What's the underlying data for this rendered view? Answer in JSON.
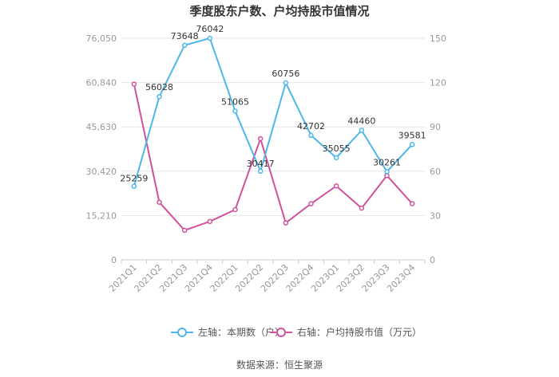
{
  "chart_data": {
    "type": "line",
    "title": "季度股东户数、户均持股市值情况",
    "categories": [
      "2021Q1",
      "2021Q2",
      "2021Q3",
      "2021Q4",
      "2022Q1",
      "2022Q2",
      "2022Q3",
      "2022Q4",
      "2023Q1",
      "2023Q2",
      "2023Q3",
      "2023Q4"
    ],
    "left_axis": {
      "ticks": [
        "0",
        "15,210",
        "30,420",
        "45,630",
        "60,840",
        "76,050"
      ],
      "min": 0,
      "max": 76050
    },
    "right_axis": {
      "ticks": [
        "0",
        "30",
        "60",
        "90",
        "120",
        "150"
      ],
      "min": 0,
      "max": 150
    },
    "series": [
      {
        "name": "左轴：本期数（户）",
        "axis": "left",
        "color": "#4DB8E8",
        "values": [
          25259,
          56028,
          73648,
          76042,
          51065,
          30417,
          60756,
          42702,
          35055,
          44460,
          30261,
          39581
        ],
        "labels": [
          "25259",
          "56028",
          "73648",
          "76042",
          "51065",
          "30417",
          "60756",
          "42702",
          "35055",
          "44460",
          "30261",
          "39581"
        ]
      },
      {
        "name": "右轴：户均持股市值（万元）",
        "axis": "right",
        "color": "#D1529A",
        "values": [
          119,
          39,
          20,
          26,
          34,
          82,
          25,
          38,
          50,
          35,
          57,
          38
        ]
      }
    ],
    "grid": true,
    "legend": "bottom",
    "source": "数据来源：恒生聚源"
  }
}
